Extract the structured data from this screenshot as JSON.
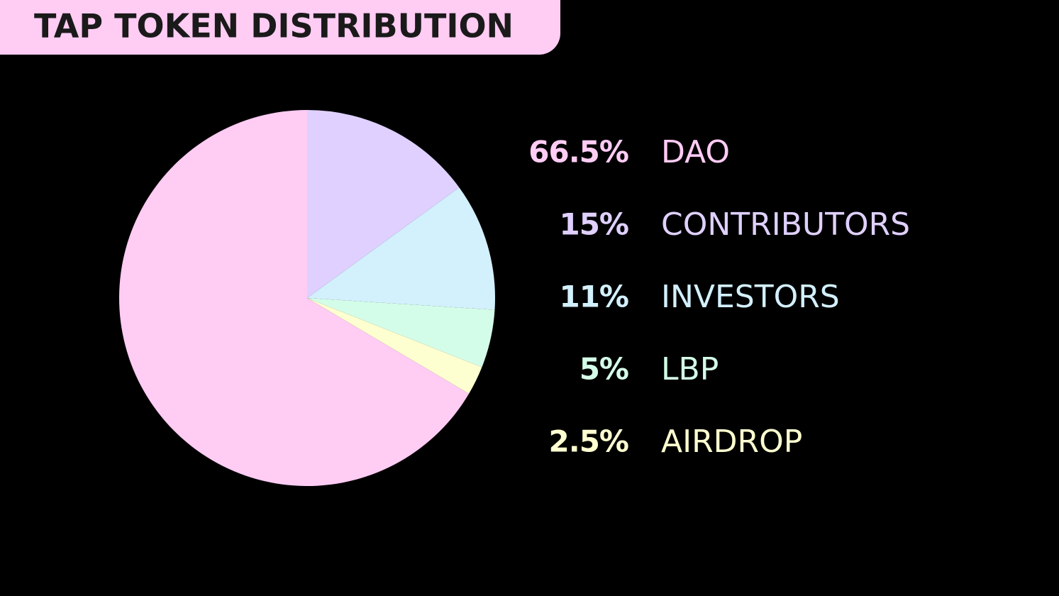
{
  "chart_data": {
    "type": "pie",
    "title": "TAP TOKEN DISTRIBUTION",
    "categories": [
      "DAO",
      "CONTRIBUTORS",
      "INVESTORS",
      "LBP",
      "AIRDROP"
    ],
    "values": [
      66.5,
      15,
      11,
      5,
      2.5
    ],
    "value_labels": [
      "66.5%",
      "15%",
      "11%",
      "5%",
      "2.5%"
    ],
    "colors": [
      "#ffccf4",
      "#dfd0ff",
      "#d3f0fd",
      "#d4fde9",
      "#feffd0"
    ]
  }
}
